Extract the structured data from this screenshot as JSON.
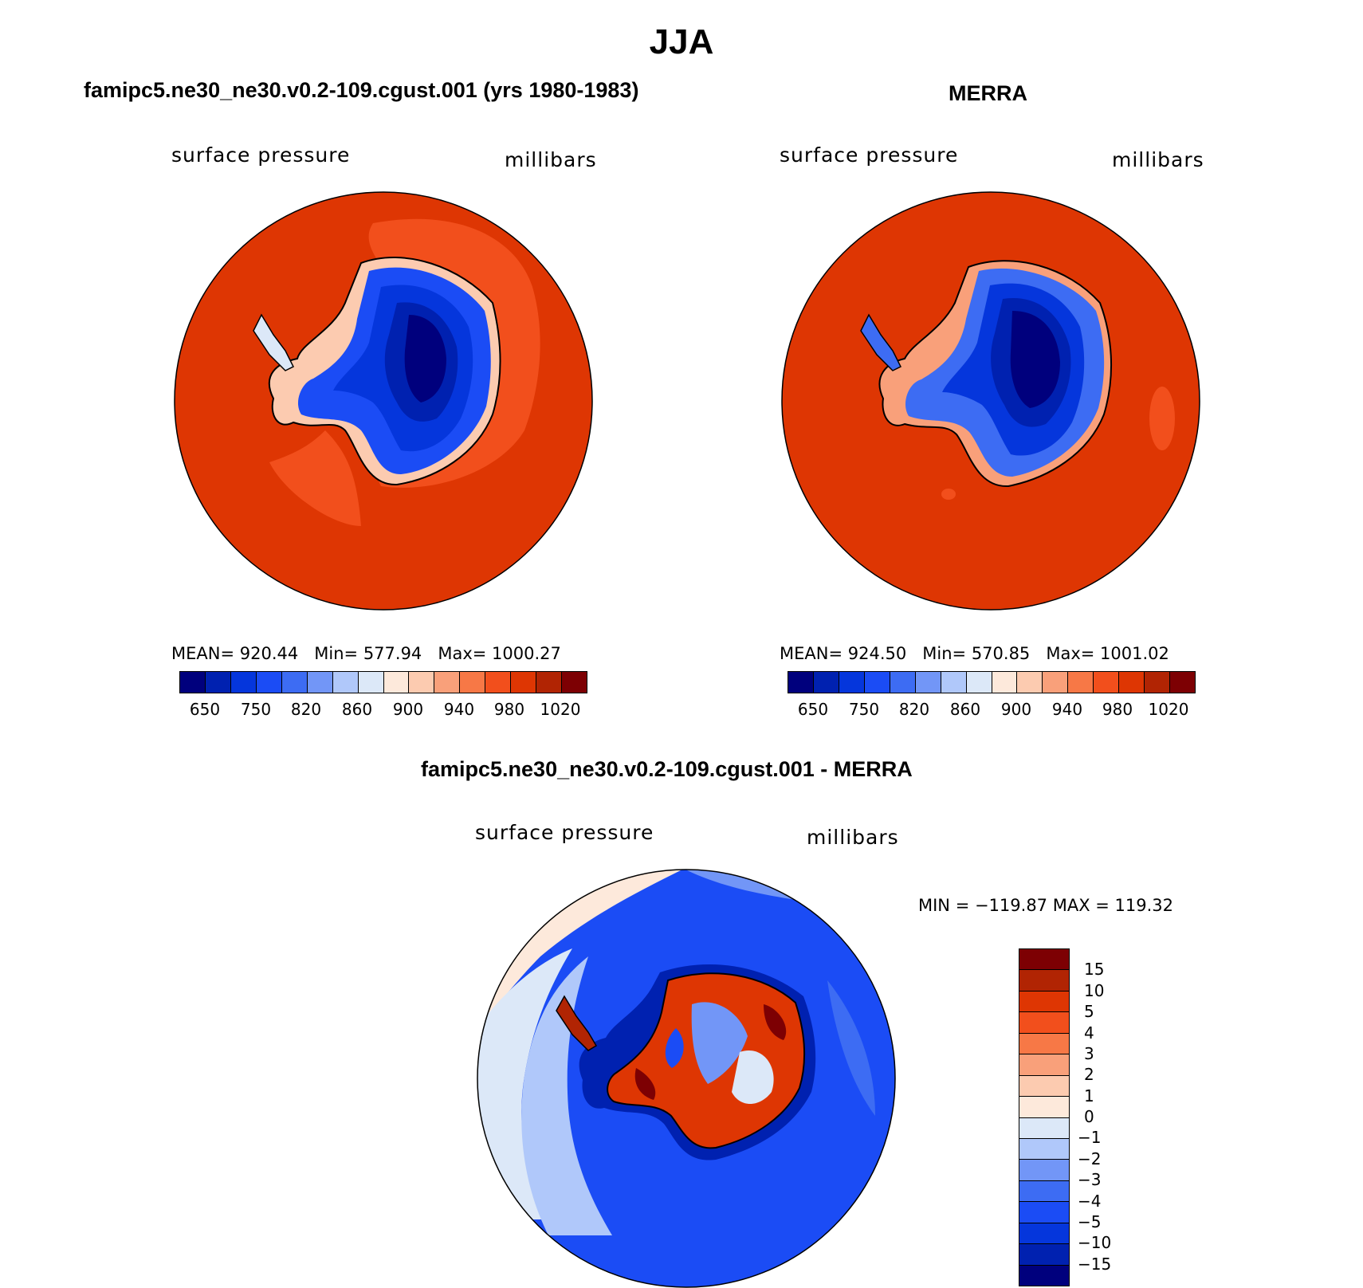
{
  "title": "JJA",
  "colors": {
    "abs_scale": [
      "#00007d",
      "#0021b0",
      "#0536dc",
      "#1b4cf5",
      "#3d6cf3",
      "#7296f7",
      "#b0c8fa",
      "#dce8f8",
      "#fde9db",
      "#fccbb0",
      "#f9a07a",
      "#f77846",
      "#f24f1c",
      "#de3603",
      "#b12403",
      "#7d0003"
    ],
    "diff_scale": [
      "#7d0003",
      "#b12403",
      "#de3603",
      "#f24f1c",
      "#f77846",
      "#f9a07a",
      "#fccbb0",
      "#fde9db",
      "#dce8f8",
      "#b0c8fa",
      "#7296f7",
      "#3d6cf3",
      "#1b4cf5",
      "#0536dc",
      "#0021b0",
      "#00007d"
    ]
  },
  "panels": {
    "left": {
      "title": "famipc5.ne30_ne30.v0.2-109.cgust.001 (yrs 1980-1983)",
      "variable": "surface pressure",
      "units": "millibars",
      "mean_label": "MEAN=",
      "mean": "920.44",
      "min_label": "Min=",
      "min": "577.94",
      "max_label": "Max=",
      "max": "1000.27"
    },
    "right": {
      "title": "MERRA",
      "variable": "surface pressure",
      "units": "millibars",
      "mean_label": "MEAN=",
      "mean": "924.50",
      "min_label": "Min=",
      "min": "570.85",
      "max_label": "Max=",
      "max": "1001.02"
    },
    "diff": {
      "title": "famipc5.ne30_ne30.v0.2-109.cgust.001 - MERRA",
      "variable": "surface pressure",
      "units": "millibars",
      "minmax": "MIN = −119.87 MAX = 119.32"
    }
  },
  "chart_data": [
    {
      "type": "heatmap",
      "title": "famipc5.ne30_ne30.v0.2-109.cgust.001 (yrs 1980-1983)",
      "variable": "surface pressure",
      "units": "millibars",
      "projection": "south polar stereographic",
      "stats": {
        "mean": 920.44,
        "min": 577.94,
        "max": 1000.27
      },
      "colorbar_levels": [
        650,
        700,
        750,
        800,
        820,
        840,
        860,
        880,
        900,
        920,
        940,
        960,
        980,
        1000,
        1020
      ],
      "colorbar_tick_labels": [
        "650",
        "750",
        "820",
        "860",
        "900",
        "940",
        "980",
        "1020"
      ]
    },
    {
      "type": "heatmap",
      "title": "MERRA",
      "variable": "surface pressure",
      "units": "millibars",
      "projection": "south polar stereographic",
      "stats": {
        "mean": 924.5,
        "min": 570.85,
        "max": 1001.02
      },
      "colorbar_levels": [
        650,
        700,
        750,
        800,
        820,
        840,
        860,
        880,
        900,
        920,
        940,
        960,
        980,
        1000,
        1020
      ],
      "colorbar_tick_labels": [
        "650",
        "750",
        "820",
        "860",
        "900",
        "940",
        "980",
        "1020"
      ]
    },
    {
      "type": "heatmap",
      "title": "famipc5.ne30_ne30.v0.2-109.cgust.001 - MERRA",
      "variable": "surface pressure",
      "units": "millibars",
      "projection": "south polar stereographic",
      "stats": {
        "min": -119.87,
        "max": 119.32
      },
      "colorbar_levels": [
        15,
        10,
        5,
        4,
        3,
        2,
        1,
        0,
        -1,
        -2,
        -3,
        -4,
        -5,
        -10,
        -15
      ],
      "colorbar_tick_labels": [
        "15",
        "10",
        "5",
        "4",
        "3",
        "2",
        "1",
        "0",
        "−1",
        "−2",
        "−3",
        "−4",
        "−5",
        "−10",
        "−15"
      ]
    }
  ]
}
